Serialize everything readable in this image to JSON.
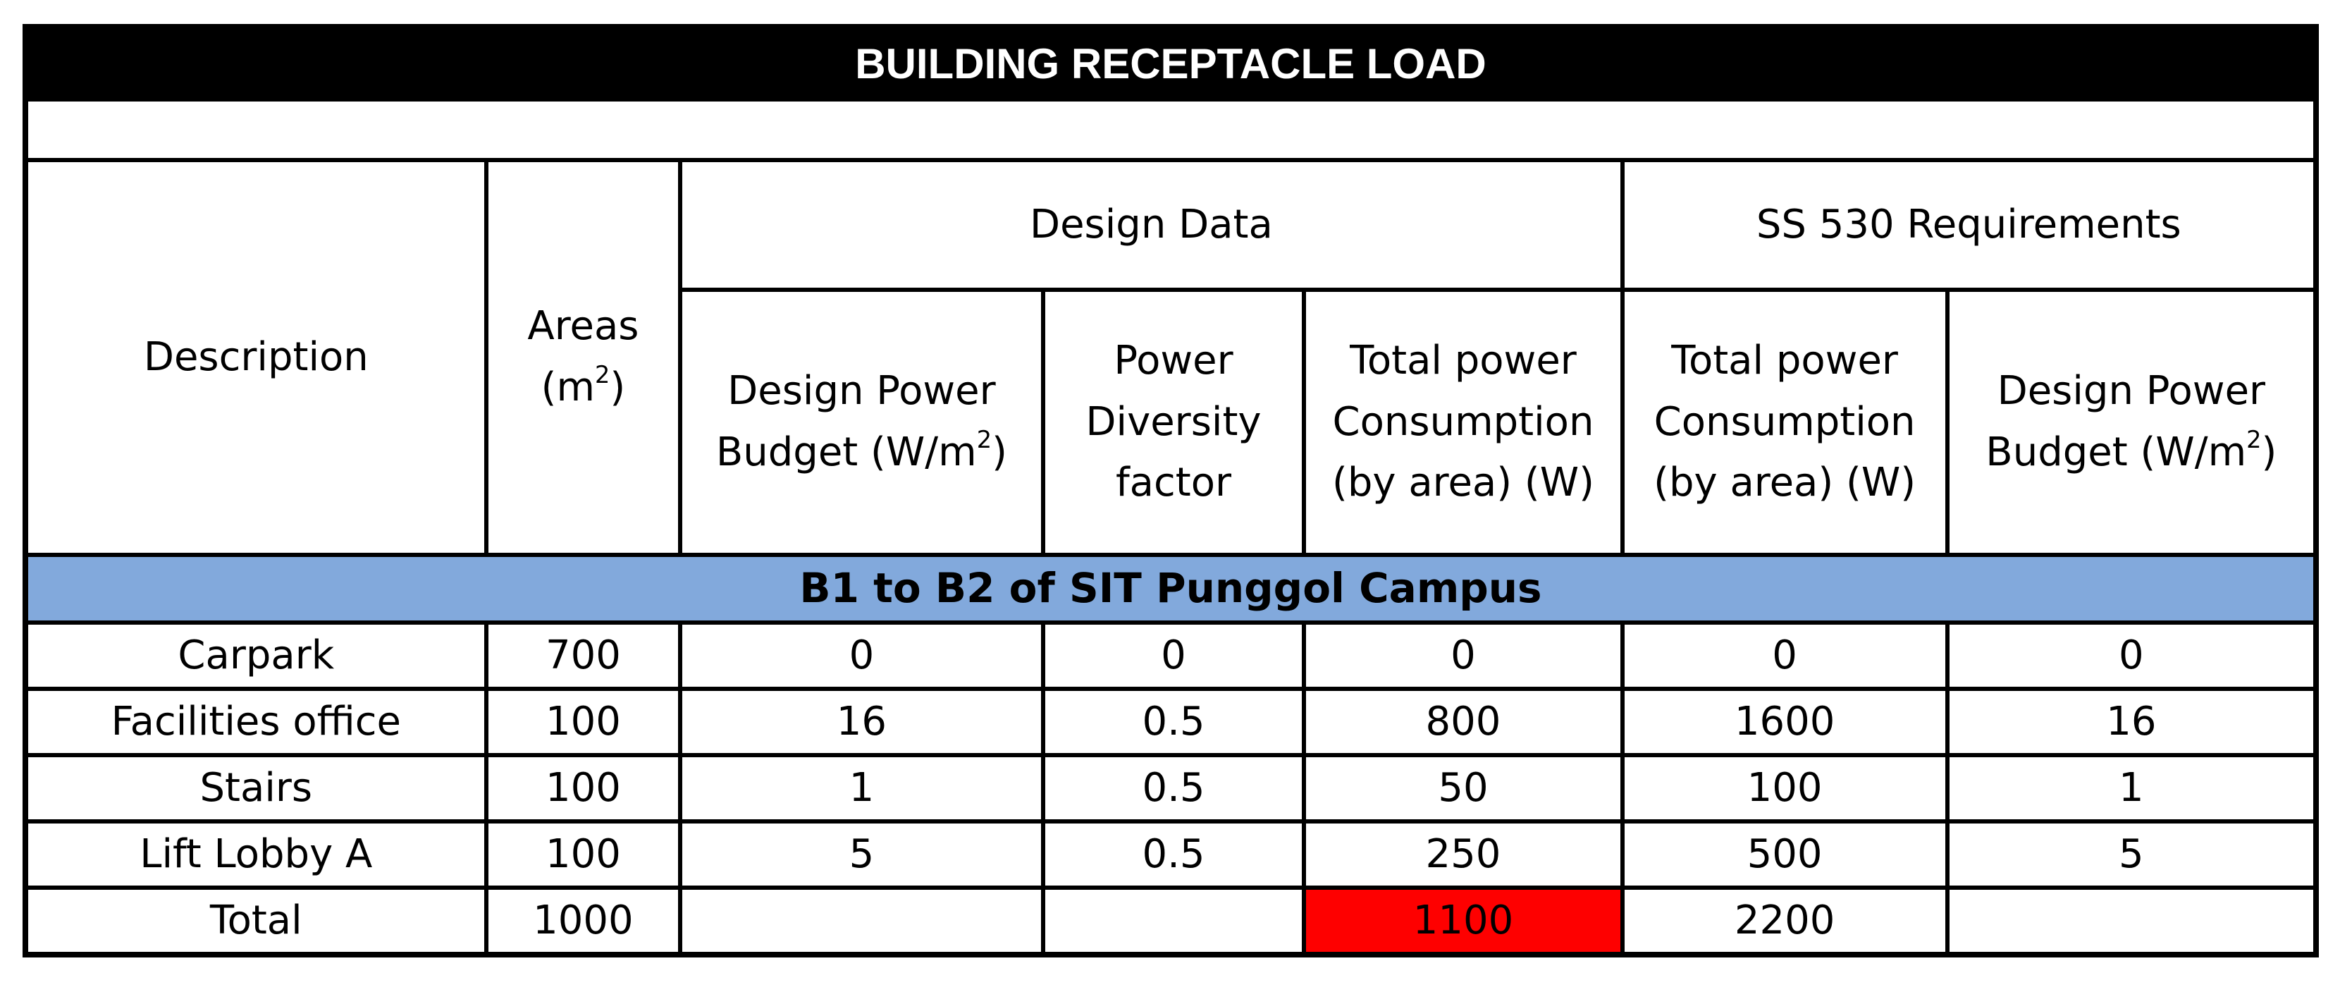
{
  "title": "BUILDING RECEPTACLE LOAD",
  "headers": {
    "description": "Description",
    "areas": "Areas",
    "areas_unit_open": "(m",
    "areas_unit_exp": "2",
    "areas_unit_close": ")",
    "design_data": "Design Data",
    "ss530": "SS 530 Requirements",
    "design_power_budget": {
      "line1": "Design Power",
      "line2_pre": "Budget (W/m",
      "exp": "2",
      "line2_post": ")"
    },
    "power_diversity": {
      "line1": "Power",
      "line2": "Diversity",
      "line3": "factor"
    },
    "total_power_design": {
      "line1": "Total power",
      "line2": "Consumption",
      "line3": "(by area) (W)"
    },
    "total_power_ss": {
      "line1": "Total power",
      "line2": "Consumption",
      "line3": "(by area) (W)"
    },
    "ss_design_power_budget": {
      "line1": "Design Power",
      "line2_pre": "Budget (W/m",
      "exp": "2",
      "line2_post": ")"
    }
  },
  "section": "B1 to B2 of SIT Punggol Campus",
  "rows": [
    {
      "description": "Carpark",
      "area": "700",
      "budget": "0",
      "diversity": "0",
      "total_design": "0",
      "total_ss": "0",
      "ss_budget": "0"
    },
    {
      "description": "Facilities office",
      "area": "100",
      "budget": "16",
      "diversity": "0.5",
      "total_design": "800",
      "total_ss": "1600",
      "ss_budget": "16"
    },
    {
      "description": "Stairs",
      "area": "100",
      "budget": "1",
      "diversity": "0.5",
      "total_design": "50",
      "total_ss": "100",
      "ss_budget": "1"
    },
    {
      "description": "Lift Lobby A",
      "area": "100",
      "budget": "5",
      "diversity": "0.5",
      "total_design": "250",
      "total_ss": "500",
      "ss_budget": "5"
    }
  ],
  "total": {
    "label": "Total",
    "area": "1000",
    "budget": "",
    "diversity": "",
    "total_design": "1100",
    "total_ss": "2200",
    "ss_budget": ""
  },
  "colors": {
    "title_bg": "#000000",
    "section_bg": "#82a9dc",
    "highlight": "#fe0000"
  }
}
